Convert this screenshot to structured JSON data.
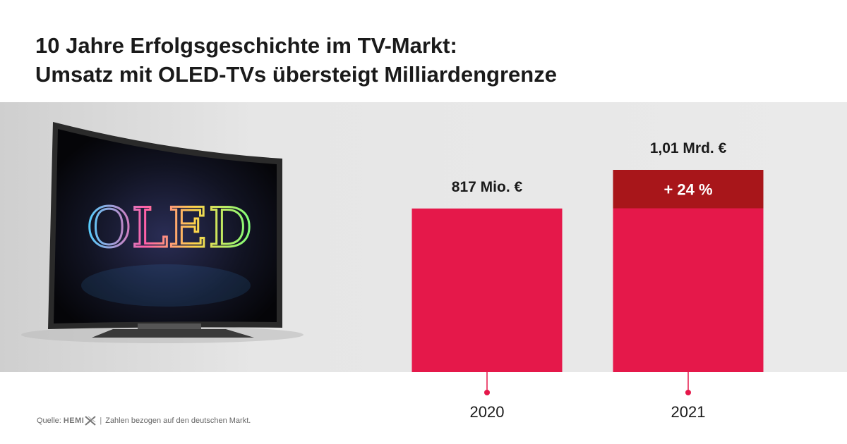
{
  "title": {
    "line1": "10 Jahre Erfolgsgeschichte im TV-Markt:",
    "line2": "Umsatz mit OLED-TVs übersteigt Milliardengrenze"
  },
  "tv_image": {
    "screen_text": "OLED"
  },
  "chart_data": {
    "type": "bar",
    "title": "",
    "xlabel": "",
    "ylabel": "",
    "categories": [
      "2020",
      "2021"
    ],
    "values": [
      817,
      1010
    ],
    "value_labels": [
      "817 Mio. €",
      "1,01 Mrd. €"
    ],
    "growth_label": "+ 24 %",
    "ylim": [
      0,
      1010
    ],
    "grid": false,
    "colors": {
      "bar": "#e5184a",
      "growth": "#a8161a",
      "tick_dot": "#e5184a",
      "text": "#1a1a1a"
    }
  },
  "footer": {
    "source_prefix": "Quelle:",
    "logo_text": "HEMI",
    "separator": "|",
    "note": "Zahlen bezogen auf den deutschen Markt."
  }
}
